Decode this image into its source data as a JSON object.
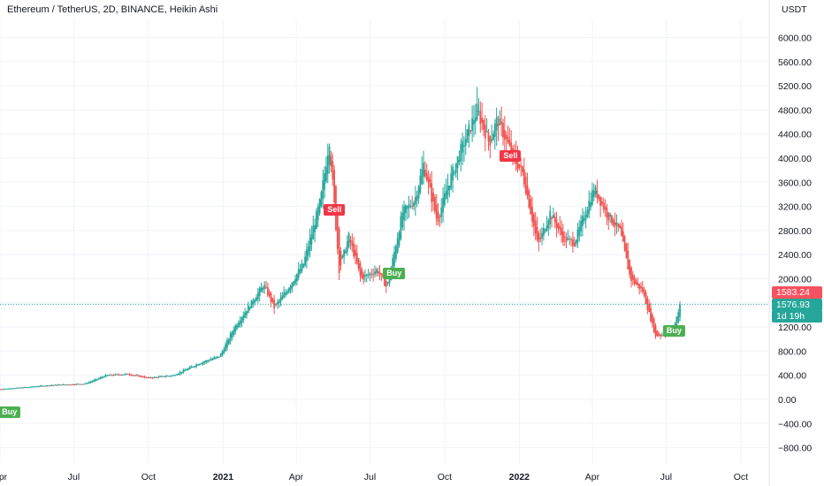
{
  "header": {
    "title": "Ethereum / TetherUS, 2D, BINANCE, Heikin Ashi",
    "currency": "USDT"
  },
  "chart_data": {
    "type": "candlestick",
    "title": "Ethereum / TetherUS, 2D, BINANCE, Heikin Ashi",
    "ylim": [
      -1000,
      6400
    ],
    "y_ticks": [
      6000,
      5600,
      5200,
      4800,
      4400,
      4000,
      3600,
      3200,
      2800,
      2400,
      2000,
      1600,
      1200,
      800,
      400,
      0,
      -400,
      -800
    ],
    "y_tick_labels": [
      "6000.00",
      "5600.00",
      "5200.00",
      "4800.00",
      "4400.00",
      "4000.00",
      "3600.00",
      "3200.00",
      "2800.00",
      "2400.00",
      "2000.00",
      "1600.00",
      "1200.00",
      "800.00",
      "400.00",
      "0.00",
      "−400.00",
      "−800.00"
    ],
    "x_tick_labels": [
      "Apr",
      "Jul",
      "Oct",
      "2021",
      "Apr",
      "Jul",
      "Oct",
      "2022",
      "Apr",
      "Jul",
      "Oct"
    ],
    "x_tick_dates": [
      "2020-04-01",
      "2020-07-01",
      "2020-10-01",
      "2021-01-01",
      "2021-04-01",
      "2021-07-01",
      "2021-10-01",
      "2022-01-01",
      "2022-04-01",
      "2022-07-01",
      "2022-10-01"
    ],
    "x_tick_bold": [
      false,
      false,
      false,
      true,
      false,
      false,
      false,
      true,
      false,
      false,
      false
    ],
    "xlim": [
      "2020-04-01",
      "2022-11-05"
    ],
    "grid": true,
    "candle_interval": "2D",
    "price_path": [
      [
        "2020-04-01",
        170
      ],
      [
        "2020-05-01",
        200
      ],
      [
        "2020-06-01",
        235
      ],
      [
        "2020-07-15",
        260
      ],
      [
        "2020-08-10",
        400
      ],
      [
        "2020-09-05",
        420
      ],
      [
        "2020-10-01",
        355
      ],
      [
        "2020-11-01",
        400
      ],
      [
        "2020-12-01",
        590
      ],
      [
        "2020-12-28",
        720
      ],
      [
        "2021-01-15",
        1200
      ],
      [
        "2021-02-20",
        1900
      ],
      [
        "2021-03-05",
        1520
      ],
      [
        "2021-03-20",
        1800
      ],
      [
        "2021-04-10",
        2250
      ],
      [
        "2021-05-01",
        3300
      ],
      [
        "2021-05-12",
        4300
      ],
      [
        "2021-05-24",
        2150
      ],
      [
        "2021-06-05",
        2700
      ],
      [
        "2021-06-20",
        2000
      ],
      [
        "2021-07-10",
        2150
      ],
      [
        "2021-07-22",
        1850
      ],
      [
        "2021-08-10",
        3100
      ],
      [
        "2021-08-25",
        3300
      ],
      [
        "2021-09-05",
        3900
      ],
      [
        "2021-09-22",
        2950
      ],
      [
        "2021-10-05",
        3550
      ],
      [
        "2021-10-20",
        4100
      ],
      [
        "2021-11-10",
        4800
      ],
      [
        "2021-11-25",
        4250
      ],
      [
        "2021-12-05",
        4650
      ],
      [
        "2021-12-25",
        4000
      ],
      [
        "2022-01-05",
        3750
      ],
      [
        "2022-01-24",
        2550
      ],
      [
        "2022-02-08",
        3100
      ],
      [
        "2022-02-25",
        2650
      ],
      [
        "2022-03-10",
        2600
      ],
      [
        "2022-04-03",
        3500
      ],
      [
        "2022-04-20",
        3050
      ],
      [
        "2022-05-05",
        2800
      ],
      [
        "2022-05-18",
        2000
      ],
      [
        "2022-06-02",
        1800
      ],
      [
        "2022-06-18",
        1050
      ],
      [
        "2022-06-30",
        1080
      ],
      [
        "2022-07-10",
        1150
      ],
      [
        "2022-07-18",
        1575
      ]
    ],
    "signals": [
      {
        "label": "Buy",
        "date": "2020-04-10",
        "anchor_price": -200,
        "type": "buy"
      },
      {
        "label": "Sell",
        "date": "2021-05-16",
        "anchor_price": 3150,
        "type": "sell"
      },
      {
        "label": "Buy",
        "date": "2021-07-28",
        "anchor_price": 2100,
        "type": "buy"
      },
      {
        "label": "Sell",
        "date": "2021-12-19",
        "anchor_price": 4050,
        "type": "sell"
      },
      {
        "label": "Buy",
        "date": "2022-07-08",
        "anchor_price": 1150,
        "type": "buy"
      }
    ],
    "price_labels": [
      {
        "label": "1583.24",
        "price": 1583.24,
        "type": "high"
      },
      {
        "label": "1576.93",
        "price": 1576.93,
        "type": "last"
      },
      {
        "label": "1d 19h",
        "price": 1576.93,
        "type": "countdown"
      }
    ]
  },
  "colors": {
    "bull": "#26a69a",
    "bear": "#ef5350",
    "grid": "#f0f3fa",
    "axis_text": "#131722",
    "buy_badge": "#4caf50",
    "sell_badge": "#f23645",
    "last_price": "#26a69a",
    "high_price": "#f7525f"
  }
}
